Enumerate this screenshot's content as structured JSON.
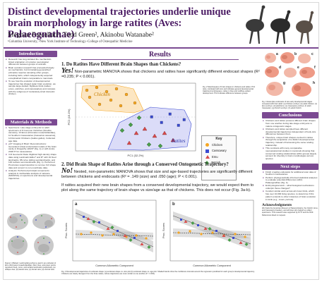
{
  "header": {
    "title": "Distinct developmental trajectories underlie unique brain morphology in large ratites (Aves: Palaeognathae)",
    "authors": "Meghan Forcellati¹, Todd Green², Akinobu Watanabe²",
    "affiliation": "¹Columbia University, ²New York Institute of Technology–College of Osteopathic Medicine"
  },
  "intro": {
    "heading": "Introduction",
    "bullets": [
      "Research has long debated the mechanistic-linked origination of complex neurological differences between groups of animals.",
      "Brain evolution research has proceeded largely as mechanistic, but formulating generalized principles requires sampling other groups, including birds, which independently acquired encephalized brains comparable to mammals.",
      "To see how the evolution of developmental trajectories has shaped avian brain evolution, we sample large-bodied, flightless birds (ratites: emus, ostriches, and cassowaries) and compare with the subgroup of moderately-sized domestic chicken."
    ]
  },
  "methods": {
    "heading": "Materials & Methods",
    "bullets": [
      "Specimens: Late-stage embryonic to adult specimens of 8 Common Ostriches (Struthio camelus), 13 Emus (Dromaius novaehollandiae), 11 Southern Cassowaries (Casuarius casuarius), 14 Domestic Chickens (Gallus gallus). Collected age data.",
      "μCT Imaging & 'Brain' Reconstructions: Generated virtual endocranial models of the brain cavity in Dragonfly v2020* (Fig. 1) or with Amira 2018.3* for cassowaries.",
      "3-D Geometric Data: Digitized high-density shape data using Landmark Editor* and R* with 19 fixed landmarks, 88 curve sliding semilandmarks, and 140 surface semi-landmarks (Fig. 1). Performed Procrustes superimposition to remove 3-D shape data and convert to non-coordinate data.",
      "Analysis: Performed principal components analysis & multivariate analysis of variance (MANOVA) on specimens and developmental trajectories."
    ],
    "figure_caption": "Figure 1 (Below): Landmarking scheme used in an endocast of Emu (Dromaius novaehollandiae). Red, blue, and green points represent fixed, curve, and surface landmarks respectively. (a) oblique view; (b) lateral view; (c) dorsal view; (d) ventral view."
  },
  "results": {
    "heading": "Results",
    "q1": "1. Do Ratites Have Different Brain Shapes than Chickens?",
    "a1_big": "Yes!",
    "a1_text": "Non-parametric MANOVA shows that chickens and ratites have significantly different endocast shapes (R² =0.235; P < 0.001).",
    "fig2_caption": "Fig. 2 Morphospace of brain shapes in chickens and ratites: PC1 (top), correlated with size and indicates general developmental trajectory/morphospace, ratites in blue and red/blue-variant development. PC2 indicates difference between groups.",
    "q2": "2. Did Brain Shape of Ratites Arise through a Conserved Ontogenetic Trajectory?",
    "a2_big": "No!",
    "a2_text": "Nested, non-parametric MANOVA shows that size and age-based trajectories are significantly different between chickens and endocasts (R² = .149 (size) and .050 (age); P < 0.001).",
    "a2_text2": "If ratites acquired their new brain shapes from a conserved developmental trajectory, we would expect them to plot along the same trajectory of brain shape vs size/age as that of chickens. This does not occur (Fig. 3a-b).",
    "fig3_caption": "Fig. 3 Developmental trajectories of endocast shape: (a) endocast shape vs. size plot (b) endocast shape vs. age plot. Shaded bands show the confidence intervals around the regression predicted for each group's developmental trajectory. Chickens are clearly divergent from the three ratites, whose trajectories are more similar to one another (P < 0.001)."
  },
  "chart_fig2": {
    "xlabel": "PC1 (32.2%)",
    "ylabel": "PC2 (15.1%)",
    "group_labels": [
      "Chicken",
      "Ratites"
    ],
    "key_title": "Key",
    "key_items": [
      {
        "label": "Chicken",
        "color": "#f5a623"
      },
      {
        "label": "Cassowary",
        "color": "#3b4bd1"
      },
      {
        "label": "Emu",
        "color": "#d94b4b"
      },
      {
        "label": "Ostrich",
        "color": "#4a9e4a"
      }
    ]
  },
  "chart_fig3": {
    "xlabel_a": "Common Allometric Component",
    "xlabel_b": "Common Allometric Component",
    "ylabel": "Proc. Scores",
    "panel_a": "a",
    "panel_b": "b"
  },
  "fig4_caption": "Fig. 4 Examples endocasts of two early developmental stages compared with their adult: (a) Chicken embryo; (b) adult chicken; (c) Emu embryo; (d) adult Emu; (e) Cassowary embryo; (f) adult Cassowary; (g) Ostrich embryo; (h) adult Ostrich.",
  "fig4_letters": [
    "a",
    "b",
    "c",
    "d",
    "e",
    "f",
    "g",
    "h"
  ],
  "conclusions": {
    "heading": "Conclusions",
    "bullets": [
      "Chickens and ratites possess different brain shapes from one another during late-stage embryonic to mature ontogenetic stages.",
      "Chickens and ratites sampled have different developmental trajectories independent of body size differences between them.",
      "Therefore, unique brain shapes evolved in ratites through the acquisition of a distinct developmental trajectory, instead of harnessing the same scaling relationship.",
      "This contrasts with many comparative neuroanatomical studies in mammals showing that conserved scaling relationships within groups largely account for diversity in brain morphologies across species."
    ]
  },
  "next_steps": {
    "heading": "Next steps",
    "bullets": [
      "Finish creating endocasts for additional scan data of Southern Cassowaries.",
      "Perform phylogenetically informed statistical analyses to evaluate potential differences within Palaeognathae (Fig. 4).",
      "Embryological work – what biological mechanisms underpin these changes?",
      "Conduct similar work across all crown birds, which has over 10,000 living species, to determine if this pattern extends to other instances of brain evolution in birds (e.g., crows, parrots)."
    ]
  },
  "ack": {
    "heading": "Acknowledgments",
    "text": "We thank the American Museum of Natural History, the Ostrich, Emu, and Cassowary breeders, and all those who helped us collect specimens. This research was supported by NYIT and the NSF. References listed on request."
  },
  "colors": {
    "accent": "#7b4a92",
    "title": "#4a1a63",
    "chicken": "#f5a623",
    "cassowary": "#3b4bd1",
    "emu": "#d94b4b",
    "ostrich": "#4a9e4a"
  }
}
